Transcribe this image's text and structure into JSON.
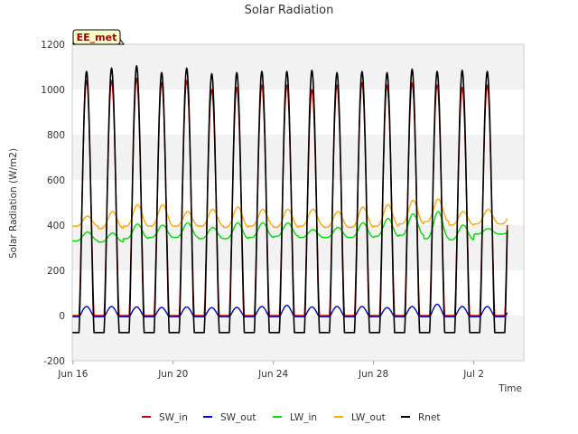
{
  "chart_data": {
    "type": "line",
    "title": "Solar Radiation",
    "xlabel": "Time",
    "ylabel": "Solar Radiation (W/m2)",
    "badge": "EE_met",
    "x_range_days": [
      15.97,
      34.0
    ],
    "x_ticks": [
      {
        "label": "Jun 16",
        "day": 16
      },
      {
        "label": "Jun 20",
        "day": 20
      },
      {
        "label": "Jun 24",
        "day": 24
      },
      {
        "label": "Jun 28",
        "day": 28
      },
      {
        "label": "Jul 2",
        "day": 32
      }
    ],
    "ylim": [
      -200,
      1200
    ],
    "y_ticks": [
      -200,
      0,
      200,
      400,
      600,
      800,
      1000,
      1200
    ],
    "grid": "alternating horizontal bands",
    "legend_position": "bottom",
    "series": [
      {
        "name": "SW_in",
        "color": "#cc0000",
        "kind": "solar",
        "daily_max": [
          1040,
          1040,
          1050,
          1030,
          1040,
          1000,
          1010,
          1020,
          1020,
          1000,
          1020,
          1030,
          1020,
          1030,
          1020,
          1010,
          1020
        ],
        "night": 0
      },
      {
        "name": "SW_out",
        "color": "#0000cc",
        "kind": "solar",
        "daily_max": [
          40,
          40,
          38,
          36,
          38,
          35,
          36,
          40,
          45,
          38,
          40,
          40,
          35,
          40,
          50,
          40,
          40
        ],
        "night": -5
      },
      {
        "name": "LW_in",
        "color": "#00dd00",
        "kind": "longwave",
        "daily_max": [
          370,
          365,
          405,
          400,
          410,
          390,
          410,
          410,
          410,
          380,
          390,
          410,
          430,
          450,
          460,
          400,
          385
        ],
        "daily_min": [
          330,
          325,
          340,
          345,
          345,
          340,
          340,
          345,
          350,
          345,
          345,
          345,
          350,
          355,
          340,
          335,
          360
        ]
      },
      {
        "name": "LW_out",
        "color": "#ffa500",
        "kind": "longwave",
        "daily_max": [
          440,
          460,
          490,
          490,
          460,
          470,
          480,
          470,
          470,
          470,
          460,
          480,
          490,
          510,
          515,
          460,
          470
        ],
        "daily_min": [
          395,
          385,
          395,
          395,
          395,
          395,
          390,
          395,
          390,
          395,
          390,
          390,
          395,
          405,
          415,
          400,
          405
        ]
      },
      {
        "name": "Rnet",
        "color": "#000000",
        "kind": "solar",
        "daily_max": [
          1080,
          1095,
          1105,
          1075,
          1095,
          1070,
          1075,
          1080,
          1080,
          1085,
          1075,
          1080,
          1075,
          1090,
          1080,
          1085,
          1080
        ],
        "night": -75
      }
    ]
  }
}
